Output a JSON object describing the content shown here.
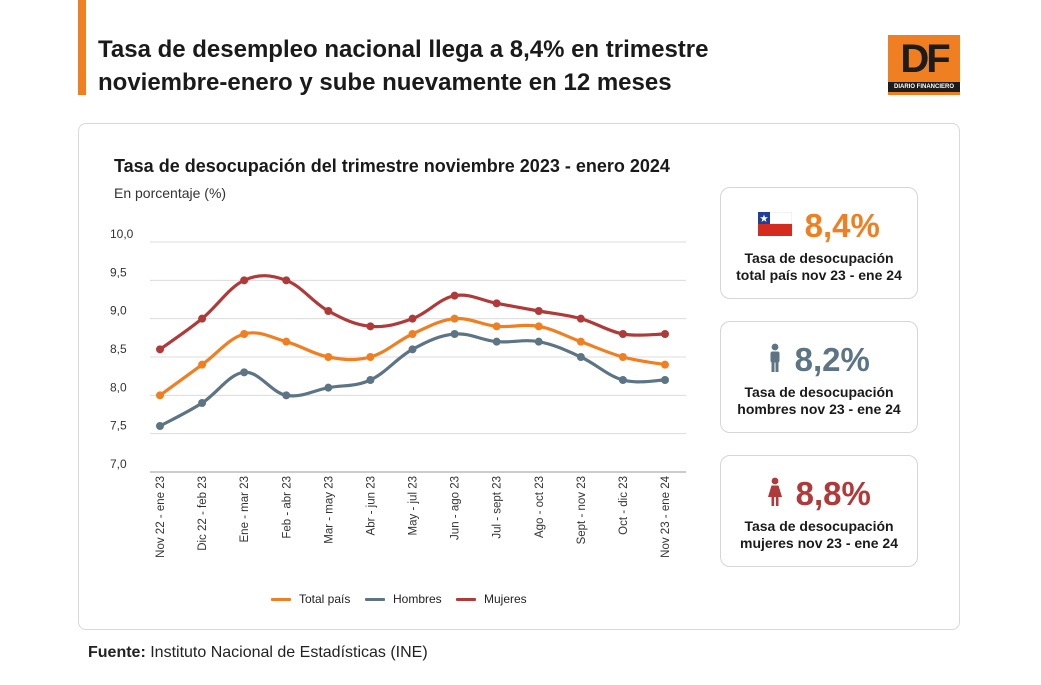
{
  "headline": {
    "line1": "Tasa de desempleo nacional llega a 8,4% en trimestre",
    "line2": "noviembre-enero y sube nuevamente en 12 meses"
  },
  "brand": {
    "logo_text": "DF",
    "logo_subtext": "DIARIO FINANCIERO",
    "accent_color": "#f07f22"
  },
  "chart_data": {
    "type": "line",
    "title": "Tasa de desocupación del trimestre noviembre 2023 - enero 2024",
    "subtitle": "En porcentaje (%)",
    "xlabel": "",
    "ylabel": "",
    "ylim": [
      7.0,
      10.0
    ],
    "yticks": [
      "10,0",
      "9,5",
      "9,0",
      "8,5",
      "8,0",
      "7,5",
      "7,0"
    ],
    "ytick_values": [
      10.0,
      9.5,
      9.0,
      8.5,
      8.0,
      7.5,
      7.0
    ],
    "grid": true,
    "legend_position": "bottom",
    "categories": [
      "Nov 22 - ene 23",
      "Dic 22 - feb 23",
      "Ene - mar 23",
      "Feb - abr 23",
      "Mar - may 23",
      "Abr - jun 23",
      "May - jul 23",
      "Jun - ago 23",
      "Jul - sept 23",
      "Ago - oct 23",
      "Sept - nov 23",
      "Oct - dic 23",
      "Nov 23 - ene 24"
    ],
    "series": [
      {
        "name": "Total país",
        "color": "#f07f22",
        "values": [
          8.0,
          8.4,
          8.8,
          8.7,
          8.5,
          8.5,
          8.8,
          9.0,
          8.9,
          8.9,
          8.7,
          8.5,
          8.4
        ]
      },
      {
        "name": "Hombres",
        "color": "#5d7484",
        "values": [
          7.6,
          7.9,
          8.3,
          8.0,
          8.1,
          8.2,
          8.6,
          8.8,
          8.7,
          8.7,
          8.5,
          8.2,
          8.2
        ]
      },
      {
        "name": "Mujeres",
        "color": "#b03a3a",
        "values": [
          8.6,
          9.0,
          9.5,
          9.5,
          9.1,
          8.9,
          9.0,
          9.3,
          9.2,
          9.1,
          9.0,
          8.8,
          8.8
        ]
      }
    ]
  },
  "kpis": [
    {
      "value": "8,4%",
      "icon": "chile-flag-icon",
      "color": "#f07f22",
      "line1": "Tasa de desocupación",
      "line2": "total país nov 23 - ene 24"
    },
    {
      "value": "8,2%",
      "icon": "man-icon",
      "color": "#5d7484",
      "line1": "Tasa de desocupación",
      "line2": "hombres nov 23 - ene 24"
    },
    {
      "value": "8,8%",
      "icon": "woman-icon",
      "color": "#b03a3a",
      "line1": "Tasa de desocupación",
      "line2": "mujeres nov 23 - ene 24"
    }
  ],
  "source": {
    "label": "Fuente:",
    "text": " Instituto Nacional de Estadísticas (INE)"
  }
}
